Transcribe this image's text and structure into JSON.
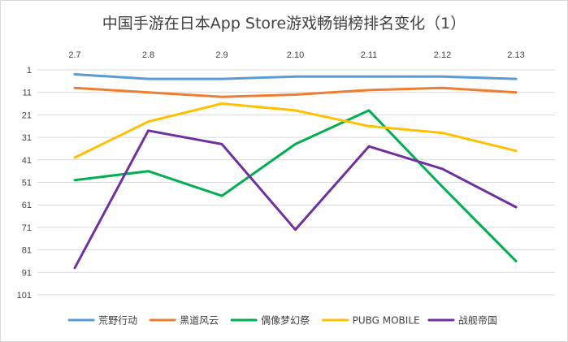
{
  "chart_data": {
    "type": "line",
    "title": "中国手游在日本App Store游戏畅销榜排名变化（1）",
    "x": [
      "2.7",
      "2.8",
      "2.9",
      "2.10",
      "2.11",
      "2.12",
      "2.13"
    ],
    "y_ticks": [
      "1",
      "11",
      "21",
      "31",
      "41",
      "51",
      "61",
      "71",
      "81",
      "91",
      "101"
    ],
    "ylim": [
      1,
      101
    ],
    "y_reversed": true,
    "x_axis_position": "top",
    "grid": true,
    "legend_position": "bottom",
    "series": [
      {
        "name": "荒野行动",
        "color": "#5B9BD5",
        "values": [
          3,
          5,
          5,
          4,
          4,
          4,
          5
        ]
      },
      {
        "name": "黑道风云",
        "color": "#ED7D31",
        "values": [
          9,
          11,
          13,
          12,
          10,
          9,
          11
        ]
      },
      {
        "name": "偶像梦幻祭",
        "color": "#00B050",
        "values": [
          50,
          46,
          57,
          34,
          19,
          53,
          86
        ]
      },
      {
        "name": "PUBG MOBILE",
        "color": "#FFC000",
        "values": [
          40,
          24,
          16,
          19,
          26,
          29,
          37
        ]
      },
      {
        "name": "战舰帝国",
        "color": "#7030A0",
        "values": [
          89,
          28,
          34,
          72,
          35,
          45,
          62
        ]
      }
    ]
  }
}
